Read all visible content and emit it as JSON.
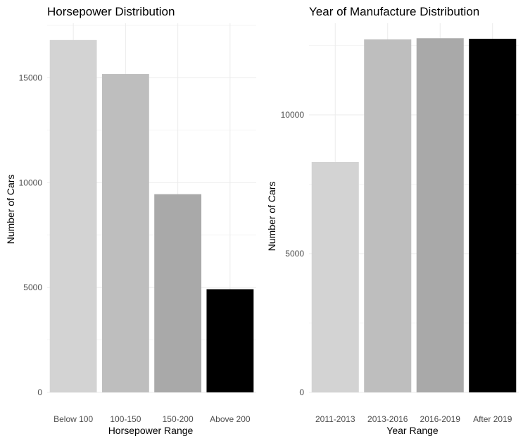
{
  "chart_data": [
    {
      "type": "bar",
      "title": "Horsepower Distribution",
      "xlabel": "Horsepower Range",
      "ylabel": "Number of Cars",
      "categories": [
        "Below 100",
        "100-150",
        "150-200",
        "Above 200"
      ],
      "values": [
        16800,
        15180,
        9450,
        4920
      ],
      "colors": [
        "#d3d3d3",
        "#bebebe",
        "#a9a9a9",
        "#000000"
      ],
      "ylim": [
        0,
        17600
      ],
      "yticks": [
        0,
        5000,
        10000,
        15000
      ],
      "grid": true,
      "legend": "none"
    },
    {
      "type": "bar",
      "title": "Year of Manufacture Distribution",
      "xlabel": "Year Range",
      "ylabel": "Number of Cars",
      "categories": [
        "2011-2013",
        "2013-2016",
        "2016-2019",
        "After 2019"
      ],
      "values": [
        8300,
        12720,
        12760,
        12740
      ],
      "colors": [
        "#d3d3d3",
        "#bebebe",
        "#a9a9a9",
        "#000000"
      ],
      "ylim": [
        0,
        13300
      ],
      "yticks": [
        0,
        5000,
        10000
      ],
      "grid": true,
      "legend": "none"
    }
  ]
}
